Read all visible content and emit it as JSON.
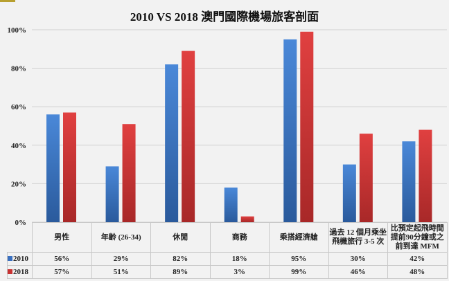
{
  "chart_data": {
    "type": "bar",
    "title": "2010 VS 2018 澳門國際機場旅客剖面",
    "categories": [
      "男性",
      "年齡 (26-34)",
      "休閒",
      "商務",
      "乘搭經濟艙",
      "過去 12 個月乘坐飛機旅行 3-5 次",
      "比預定起飛時間提前90分鐘或之前到達 MFM"
    ],
    "series": [
      {
        "name": "2010",
        "values": [
          56,
          29,
          82,
          18,
          95,
          30,
          42
        ],
        "labels": [
          "56%",
          "29%",
          "82%",
          "18%",
          "95%",
          "30%",
          "42%"
        ],
        "color": "#3a70c0"
      },
      {
        "name": "2018",
        "values": [
          57,
          51,
          89,
          3,
          99,
          46,
          48
        ],
        "labels": [
          "57%",
          "51%",
          "89%",
          "3%",
          "99%",
          "46%",
          "48%"
        ],
        "color": "#c83232"
      }
    ],
    "ylim": [
      0,
      100
    ],
    "yticks": [
      "0%",
      "20%",
      "40%",
      "60%",
      "80%",
      "100%"
    ],
    "grid": true,
    "legend": "data-table"
  }
}
